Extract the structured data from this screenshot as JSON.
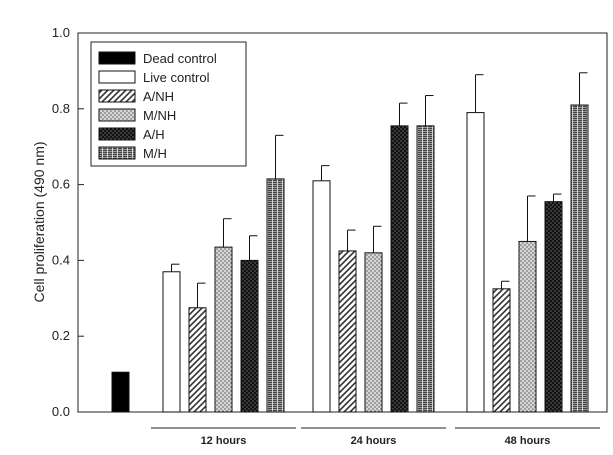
{
  "chart_data": {
    "type": "bar",
    "ylabel": "Cell proliferation (490 nm)",
    "ylim": [
      0,
      1.0
    ],
    "yticks": [
      "0.0",
      "0.2",
      "0.4",
      "0.6",
      "0.8",
      "1.0"
    ],
    "legend_position": "top-left",
    "groups": [
      {
        "label": "",
        "series": [
          "Dead control"
        ]
      },
      {
        "label": "12 hours",
        "series": [
          "Live control",
          "A/NH",
          "M/NH",
          "A/H",
          "M/H"
        ]
      },
      {
        "label": "24 hours",
        "series": [
          "Live control",
          "A/NH",
          "M/NH",
          "A/H",
          "M/H"
        ]
      },
      {
        "label": "48 hours",
        "series": [
          "Live control",
          "A/NH",
          "M/NH",
          "A/H",
          "M/H"
        ]
      }
    ],
    "series": [
      {
        "name": "Dead control",
        "pattern": "solid-black",
        "values": [
          0.105,
          null,
          null,
          null
        ],
        "errors": [
          0,
          null,
          null,
          null
        ]
      },
      {
        "name": "Live control",
        "pattern": "white",
        "values": [
          null,
          0.37,
          0.61,
          0.79
        ],
        "errors": [
          null,
          0.02,
          0.04,
          0.1
        ]
      },
      {
        "name": "A/NH",
        "pattern": "diagonal-hatch",
        "values": [
          null,
          0.275,
          0.425,
          0.325
        ],
        "errors": [
          null,
          0.065,
          0.055,
          0.02
        ]
      },
      {
        "name": "M/NH",
        "pattern": "light-dots",
        "values": [
          null,
          0.435,
          0.42,
          0.45
        ],
        "errors": [
          null,
          0.075,
          0.07,
          0.12
        ]
      },
      {
        "name": "A/H",
        "pattern": "dark-dots",
        "values": [
          null,
          0.4,
          0.755,
          0.555
        ],
        "errors": [
          null,
          0.065,
          0.06,
          0.02
        ]
      },
      {
        "name": "M/H",
        "pattern": "grid",
        "values": [
          null,
          0.615,
          0.755,
          0.81
        ],
        "errors": [
          null,
          0.115,
          0.08,
          0.085
        ]
      }
    ]
  }
}
